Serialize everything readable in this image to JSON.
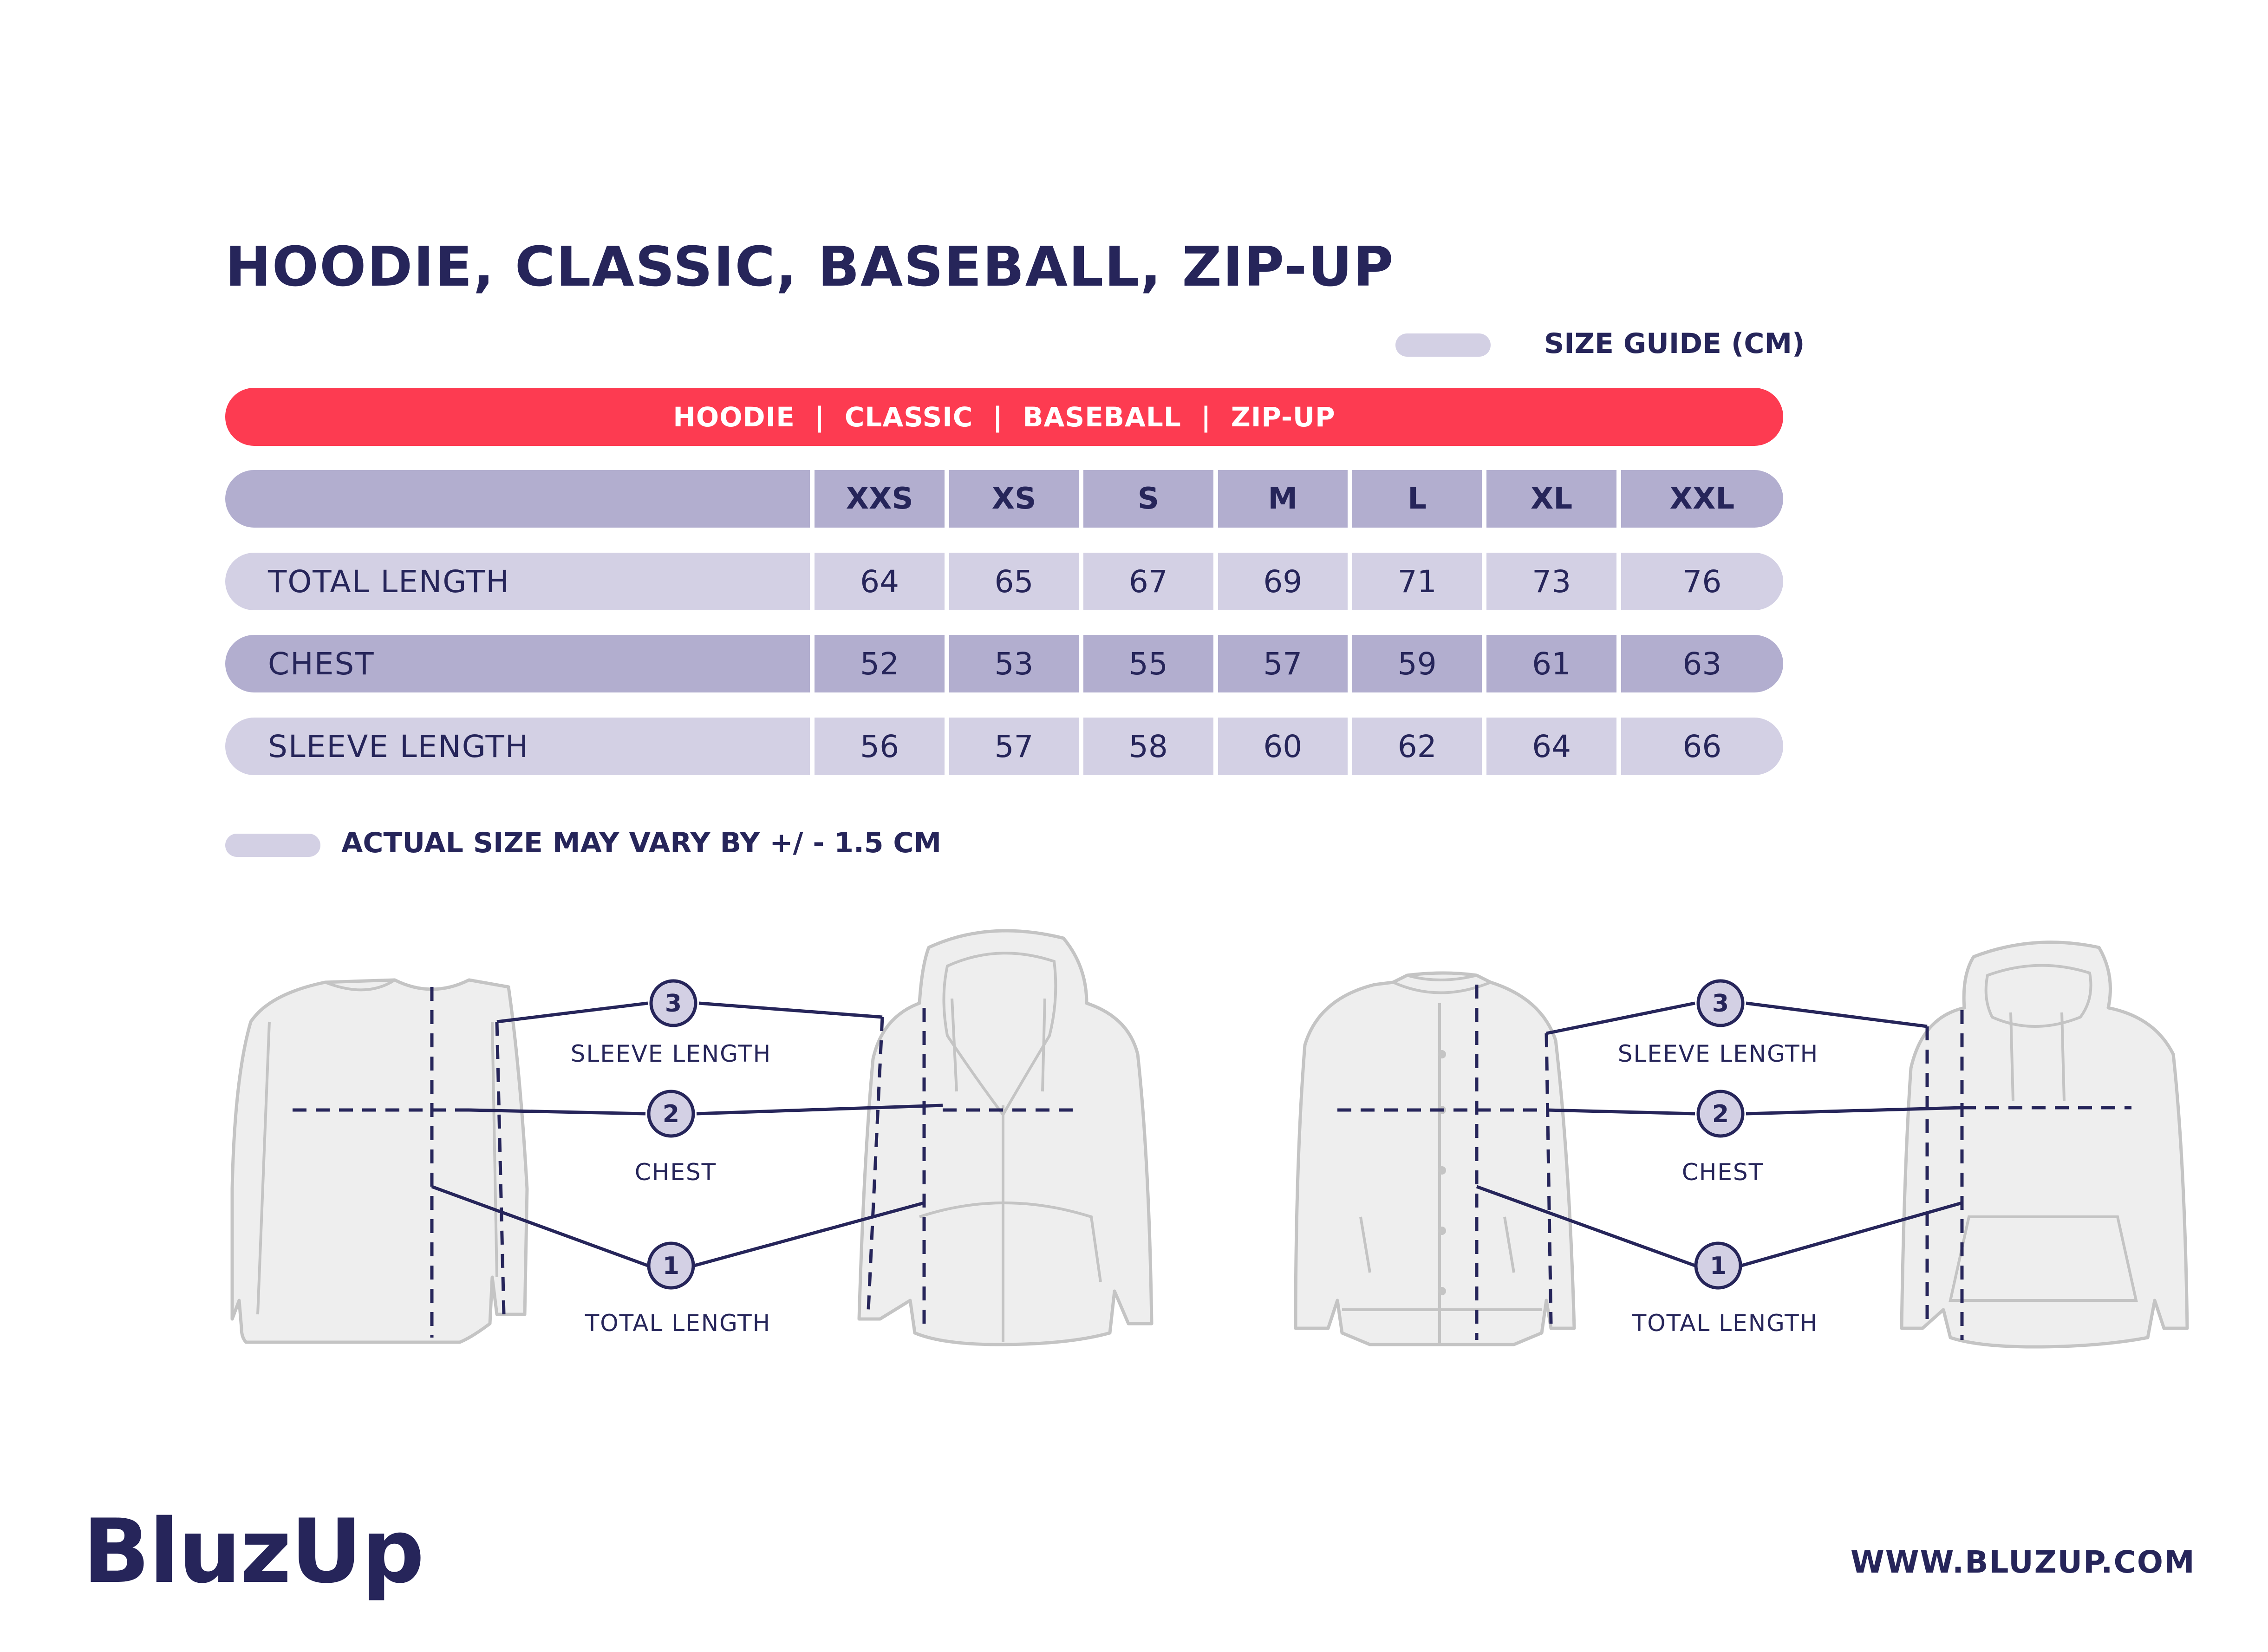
{
  "title": "HOODIE, CLASSIC, BASEBALL, ZIP-UP",
  "size_guide_label": "SIZE GUIDE (CM)",
  "banner": {
    "items": [
      "HOODIE",
      "CLASSIC",
      "BASEBALL",
      "ZIP-UP"
    ],
    "separator": "|"
  },
  "table": {
    "sizes": [
      "XXS",
      "XS",
      "S",
      "M",
      "L",
      "XL",
      "XXL"
    ],
    "rows": [
      {
        "label": "TOTAL LENGTH",
        "values": [
          "64",
          "65",
          "67",
          "69",
          "71",
          "73",
          "76"
        ]
      },
      {
        "label": "CHEST",
        "values": [
          "52",
          "53",
          "55",
          "57",
          "59",
          "61",
          "63"
        ]
      },
      {
        "label": "SLEEVE LENGTH",
        "values": [
          "56",
          "57",
          "58",
          "60",
          "62",
          "64",
          "66"
        ]
      }
    ]
  },
  "note": "ACTUAL SIZE MAY VARY BY +/ - 1.5 CM",
  "diagrams": {
    "left": {
      "sleeve_num": "3",
      "sleeve_label": "SLEEVE LENGTH",
      "chest_num": "2",
      "chest_label": "CHEST",
      "length_num": "1",
      "length_label": "TOTAL LENGTH"
    },
    "right": {
      "sleeve_num": "3",
      "sleeve_label": "SLEEVE LENGTH",
      "chest_num": "2",
      "chest_label": "CHEST",
      "length_num": "1",
      "length_label": "TOTAL LENGTH"
    }
  },
  "brand": "BluzUp",
  "website": "WWW.BLUZUP.COM",
  "colors": {
    "navy": "#26255a",
    "red": "#fd3b51",
    "row_dark": "#b2aecf",
    "row_light": "#d3d0e4",
    "garment_fill": "#eeeeee",
    "garment_stroke": "#c4c4c4"
  }
}
